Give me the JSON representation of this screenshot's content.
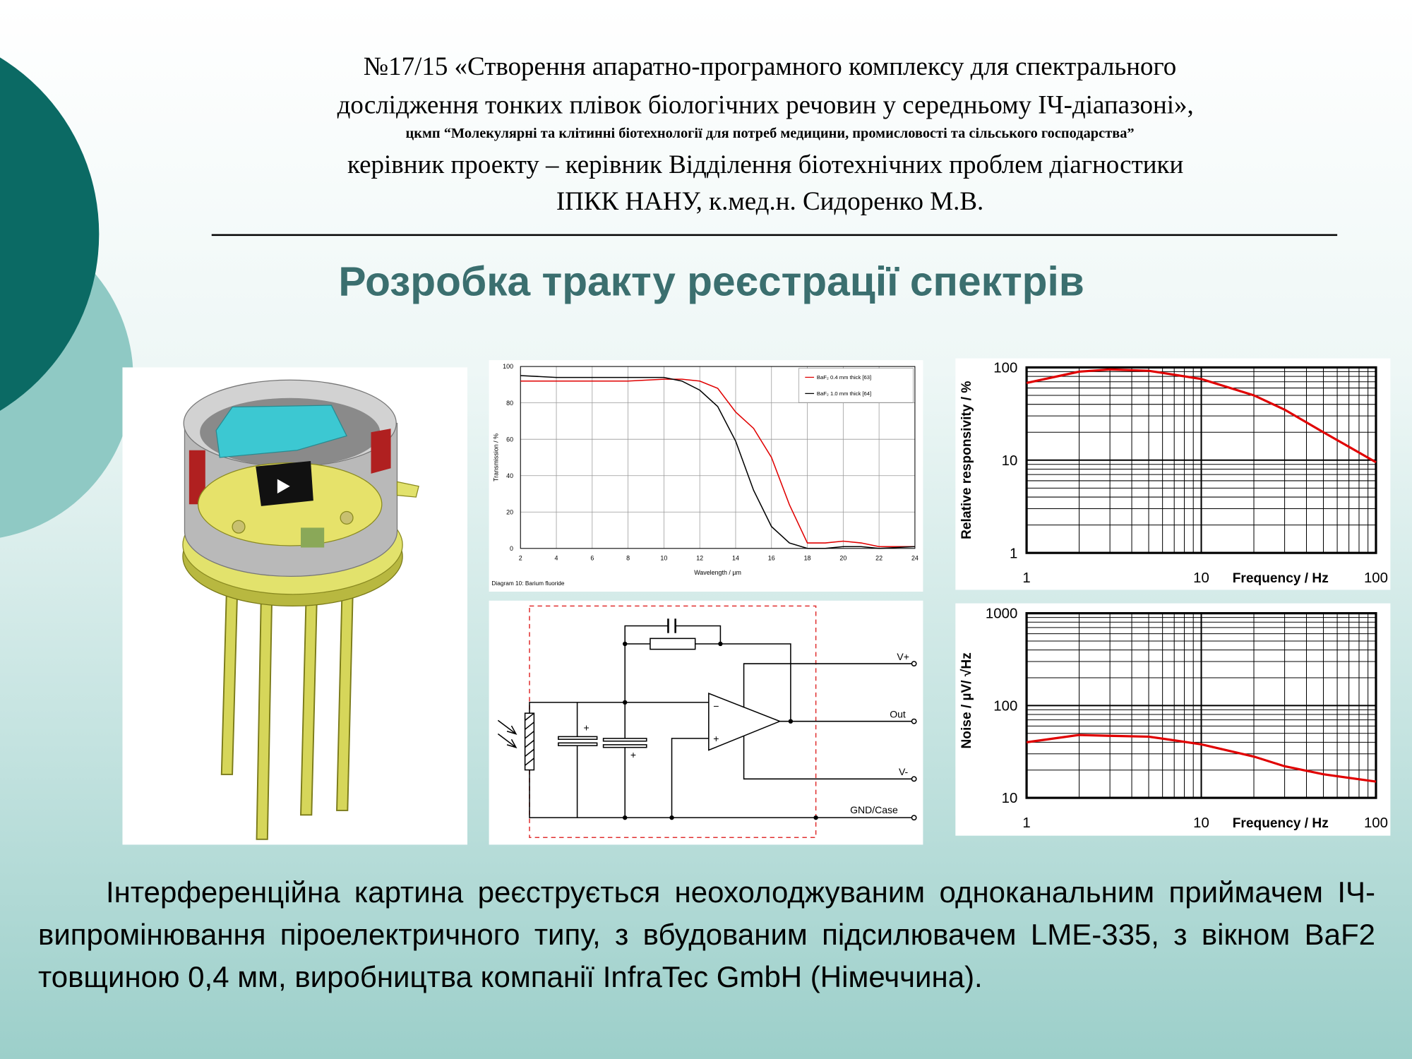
{
  "header": {
    "project": [
      "№17/15 «Створення апаратно-програмного комплексу для спектрального",
      "дослідження тонких плівок біологічних речовин у середньому ІЧ-діапазоні»,"
    ],
    "program": "цкмп “Молекулярні та клітинні біотехнології для потреб медицини, промисловості та сільського господарства”",
    "leader": [
      "керівник проекту – керівник Відділення біотехнічних проблем діагностики",
      "ІПКК НАНУ, к.мед.н. Сидоренко М.В."
    ]
  },
  "title": "Розробка тракту реєстрації спектрів",
  "circuit": {
    "labels": [
      "V+",
      "Out",
      "V-",
      "GND/Case"
    ],
    "signs": [
      "+",
      "+",
      "−",
      "+"
    ]
  },
  "chart_data": [
    {
      "type": "line",
      "x_label": "Wavelength / µm",
      "y_label": "Transmission / %",
      "caption": "Diagram 10: Barium fluoride",
      "xlim": [
        2,
        24
      ],
      "xticks": [
        2,
        4,
        6,
        8,
        10,
        12,
        14,
        16,
        18,
        20,
        22,
        24
      ],
      "ylim": [
        0,
        100
      ],
      "yticks": [
        0,
        20,
        40,
        60,
        80,
        100
      ],
      "grid": true,
      "legend": "upper right",
      "x": [
        2,
        4,
        6,
        8,
        10,
        11,
        12,
        13,
        14,
        15,
        16,
        17,
        18,
        19,
        20,
        21,
        22,
        24
      ],
      "series": [
        {
          "name": "BaF₂ 0.4 mm thick [63]",
          "color": "#e00000",
          "values": [
            92,
            92,
            92,
            92,
            93,
            93,
            92,
            88,
            75,
            66,
            50,
            24,
            3,
            3,
            4,
            3,
            1,
            1
          ]
        },
        {
          "name": "BaF₂ 1.0 mm thick [64]",
          "color": "#000000",
          "values": [
            95,
            94,
            94,
            94,
            94,
            92,
            87,
            78,
            59,
            32,
            12,
            3,
            0,
            0,
            1,
            1,
            0,
            1
          ]
        }
      ]
    },
    {
      "type": "line",
      "log_x": true,
      "log_y": true,
      "x_label": "Frequency / Hz",
      "y_label": "Relative responsivity / %",
      "xlim": [
        1,
        100
      ],
      "xticks": [
        1,
        10,
        100
      ],
      "ylim": [
        1,
        100
      ],
      "yticks": [
        1,
        10,
        100
      ],
      "grid": true,
      "x": [
        1,
        2,
        3,
        5,
        10,
        20,
        30,
        50,
        100
      ],
      "series": [
        {
          "color": "#e00000",
          "values": [
            68,
            90,
            95,
            92,
            75,
            50,
            35,
            20,
            9.5
          ]
        }
      ]
    },
    {
      "type": "line",
      "log_x": true,
      "log_y": true,
      "x_label": "Frequency / Hz",
      "y_label": "Noise / µV/ √Hz",
      "xlim": [
        1,
        100
      ],
      "xticks": [
        1,
        10,
        100
      ],
      "ylim": [
        10,
        1000
      ],
      "yticks": [
        10,
        100,
        1000
      ],
      "grid": true,
      "x": [
        1,
        2,
        3,
        5,
        7,
        10,
        20,
        30,
        50,
        100
      ],
      "series": [
        {
          "color": "#e00000",
          "values": [
            40,
            48,
            47,
            46,
            42,
            38,
            28,
            22,
            18,
            15
          ]
        }
      ]
    }
  ],
  "paragraph": "Інтерференційна картина реєструється неохолоджуваним одноканальним приймачем ІЧ-випромінювання піроелектричного типу, з вбудованим підсилювачем LME-335, з вікном BaF2 товщиною 0,4 мм, виробництва компанії InfraTec GmbH (Німеччина)."
}
